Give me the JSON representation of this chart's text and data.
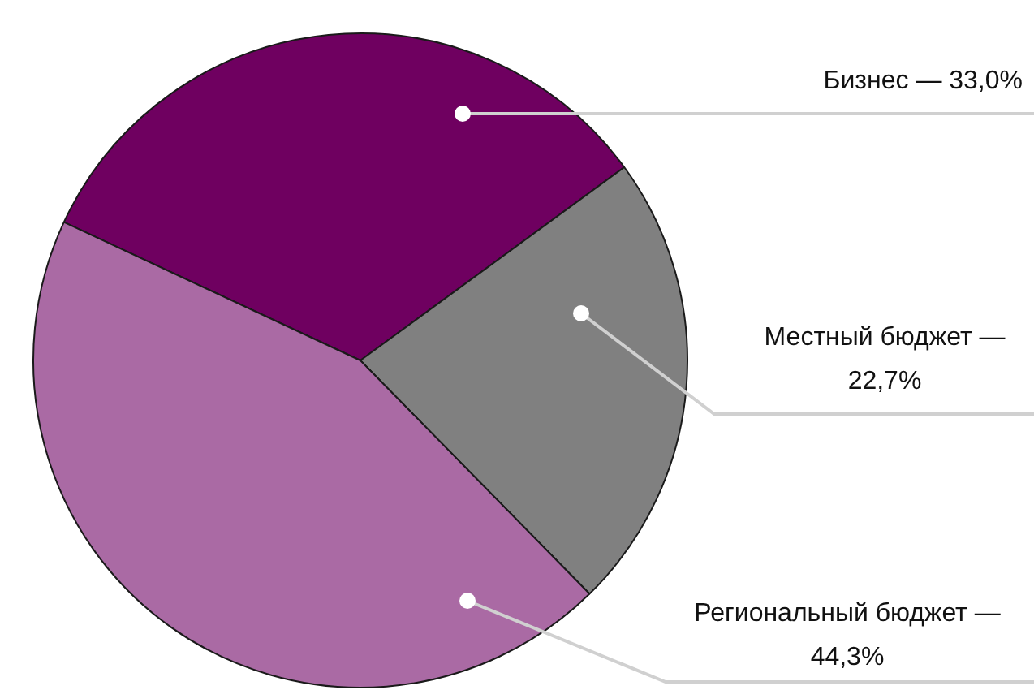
{
  "chart_data": {
    "type": "pie",
    "categories": [
      "Бизнес —",
      "Местный бюджет —",
      "Региональный бюджет —"
    ],
    "values": [
      33.0,
      22.7,
      44.3
    ],
    "colors": [
      "#6f0060",
      "#808080",
      "#aa6aa4"
    ],
    "value_labels": [
      "33,0%",
      "22,7%",
      "44,3%"
    ],
    "legend": false
  }
}
